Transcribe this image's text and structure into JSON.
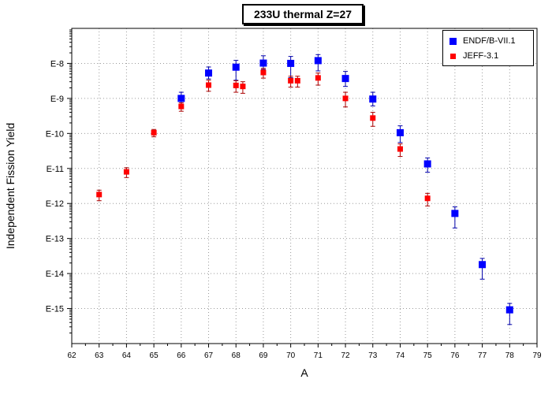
{
  "chart_data": {
    "type": "scatter",
    "title": "233U thermal Z=27",
    "xlabel": "A",
    "ylabel": "Independent Fission Yield",
    "xlim": [
      62,
      79
    ],
    "ylim": [
      1e-16,
      1e-07
    ],
    "yscale": "log",
    "grid": true,
    "legend_position": "top-right",
    "x_ticks": [
      "62",
      "63",
      "64",
      "65",
      "66",
      "67",
      "68",
      "69",
      "70",
      "71",
      "72",
      "73",
      "74",
      "75",
      "76",
      "77",
      "78",
      "79"
    ],
    "y_ticks": [
      "E-8",
      "E-9",
      "E-10",
      "E-11",
      "E-12",
      "E-13",
      "E-14",
      "E-15"
    ],
    "series": [
      {
        "name": "ENDF/B-VII.1",
        "color": "#0000ff",
        "marker": "square",
        "x": [
          66,
          67,
          68,
          69,
          70,
          71,
          72,
          73,
          74,
          75,
          76,
          77,
          78
        ],
        "y": [
          1e-09,
          5.3e-09,
          7.8e-09,
          1.02e-08,
          1e-08,
          1.2e-08,
          3.7e-09,
          9.6e-10,
          1.05e-10,
          1.35e-11,
          5.2e-13,
          1.8e-14,
          9.2e-16
        ],
        "y_low": [
          6.6e-10,
          3.6e-09,
          3.3e-09,
          6.7e-09,
          3.9e-09,
          6.1e-09,
          2.2e-09,
          6.1e-10,
          5.5e-11,
          7.8e-12,
          2e-13,
          6.9e-15,
          3.5e-16
        ],
        "y_high": [
          1.5e-09,
          7.9e-09,
          1.22e-08,
          1.65e-08,
          1.58e-08,
          1.78e-08,
          5.9e-09,
          1.5e-09,
          1.65e-10,
          2e-11,
          8e-13,
          2.7e-14,
          1.4e-15
        ]
      },
      {
        "name": "JEFF-3.1",
        "color": "#ff0000",
        "marker": "square",
        "x": [
          63,
          64,
          65,
          66,
          67,
          68,
          68.25,
          69,
          70,
          70.25,
          71,
          72,
          73,
          74,
          75
        ],
        "y": [
          1.8e-12,
          8e-12,
          1.05e-10,
          5.9e-10,
          2.4e-09,
          2.35e-09,
          2.2e-09,
          5.5e-09,
          3.2e-09,
          3.2e-09,
          3.85e-09,
          1e-09,
          2.75e-10,
          3.6e-11,
          1.4e-12
        ],
        "y_low": [
          1.2e-12,
          5.5e-12,
          8e-11,
          4.3e-10,
          1.6e-09,
          1.5e-09,
          1.4e-09,
          3.8e-09,
          2.1e-09,
          2.1e-09,
          2.4e-09,
          5.7e-10,
          1.6e-10,
          2.2e-11,
          8.5e-13
        ],
        "y_high": [
          2.4e-12,
          1.05e-11,
          1.3e-10,
          7.5e-10,
          3.3e-09,
          3.2e-09,
          3e-09,
          7.2e-09,
          4.3e-09,
          4.3e-09,
          5.3e-09,
          1.5e-09,
          4e-10,
          5e-11,
          1.95e-12
        ]
      }
    ]
  }
}
